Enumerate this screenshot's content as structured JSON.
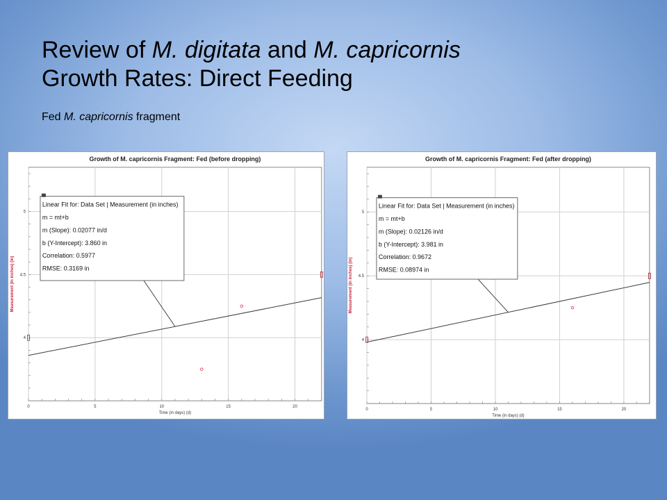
{
  "slide": {
    "title_line1_parts": [
      "Review of ",
      "M. digitata",
      " and ",
      "M. capricornis"
    ],
    "title_line2": "Growth Rates: Direct Feeding",
    "subtitle_parts": [
      "Fed ",
      "M. capricornis",
      " fragment"
    ]
  },
  "chart_data": [
    {
      "type": "scatter",
      "title": "Growth of M. capricornis Fragment: Fed (before dropping)",
      "xlabel": "Time (in days) (d)",
      "ylabel": "Measurement (in inches) (in)",
      "xlim": [
        0,
        22
      ],
      "ylim": [
        3.5,
        5.35
      ],
      "xticks": [
        0,
        5,
        10,
        15,
        20
      ],
      "yticks": [
        4,
        4.5,
        5
      ],
      "grid": true,
      "points": [
        {
          "x": 0,
          "y": 4
        },
        {
          "x": 13,
          "y": 3.75
        },
        {
          "x": 16,
          "y": 4.25
        },
        {
          "x": 22,
          "y": 4.5
        }
      ],
      "fit": {
        "type": "linear",
        "m": 0.02077,
        "b": 3.86
      },
      "annotation": {
        "lines": [
          "Linear Fit for: Data Set | Measurement (in inches)",
          "m = mt+b",
          "m (Slope): 0.02077 in/d",
          "b (Y-Intercept): 3.860 in",
          "Correlation: 0.5977",
          "RMSE: 0.3169 in"
        ],
        "pointer_x": 11
      }
    },
    {
      "type": "scatter",
      "title": "Growth of M. capricornis Fragment: Fed (after dropping)",
      "xlabel": "Time (in days) (d)",
      "ylabel": "Measurement (in inches) (in)",
      "xlim": [
        0,
        22
      ],
      "ylim": [
        3.5,
        5.35
      ],
      "xticks": [
        0,
        5,
        10,
        15,
        20
      ],
      "yticks": [
        4,
        4.5,
        5
      ],
      "grid": true,
      "points": [
        {
          "x": 0,
          "y": 4
        },
        {
          "x": 16,
          "y": 4.25
        },
        {
          "x": 22,
          "y": 4.5
        }
      ],
      "fit": {
        "type": "linear",
        "m": 0.02126,
        "b": 3.981
      },
      "annotation": {
        "lines": [
          "Linear Fit for: Data Set | Measurement (in inches)",
          "m = mt+b",
          "m (Slope): 0.02126 in/d",
          "b (Y-Intercept): 3.981 in",
          "Correlation: 0.9672",
          "RMSE: 0.08974 in"
        ],
        "pointer_x": 11
      }
    }
  ],
  "colors": {
    "point": "#e8405a",
    "ylabel": "#c8203c",
    "fit_line": "#3a3a3a",
    "grid": "#d0d0d0"
  }
}
